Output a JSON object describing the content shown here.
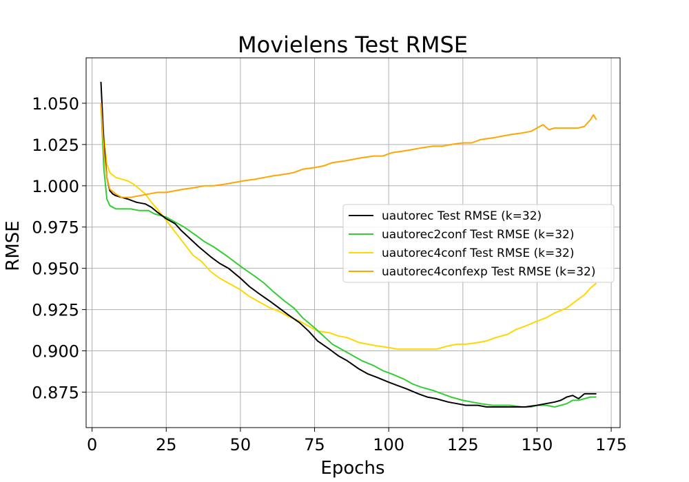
{
  "chart_data": {
    "type": "line",
    "title": "Movielens Test RMSE",
    "xlabel": "Epochs",
    "ylabel": "RMSE",
    "xlim": [
      -2,
      178
    ],
    "ylim": [
      0.8535,
      1.0775
    ],
    "xticks": [
      0,
      25,
      50,
      75,
      100,
      125,
      150,
      175
    ],
    "xtick_labels": [
      "0",
      "25",
      "50",
      "75",
      "100",
      "125",
      "150",
      "175"
    ],
    "yticks": [
      0.875,
      0.9,
      0.925,
      0.95,
      0.975,
      1.0,
      1.025,
      1.05
    ],
    "ytick_labels": [
      "0.875",
      "0.900",
      "0.925",
      "0.950",
      "0.975",
      "1.000",
      "1.025",
      "1.050"
    ],
    "grid": true,
    "legend_position": "center-right",
    "series": [
      {
        "name": "uautorec Test RMSE (k=32)",
        "color": "#000000",
        "points": [
          [
            3,
            1.063
          ],
          [
            4,
            1.025
          ],
          [
            5,
            1.005
          ],
          [
            6,
            0.997
          ],
          [
            7,
            0.995
          ],
          [
            8,
            0.994
          ],
          [
            10,
            0.993
          ],
          [
            12,
            0.992
          ],
          [
            15,
            0.99
          ],
          [
            18,
            0.989
          ],
          [
            20,
            0.987
          ],
          [
            22,
            0.984
          ],
          [
            25,
            0.98
          ],
          [
            28,
            0.977
          ],
          [
            30,
            0.973
          ],
          [
            33,
            0.968
          ],
          [
            36,
            0.963
          ],
          [
            40,
            0.957
          ],
          [
            43,
            0.953
          ],
          [
            46,
            0.95
          ],
          [
            50,
            0.944
          ],
          [
            53,
            0.939
          ],
          [
            56,
            0.935
          ],
          [
            60,
            0.93
          ],
          [
            63,
            0.926
          ],
          [
            66,
            0.922
          ],
          [
            70,
            0.917
          ],
          [
            73,
            0.912
          ],
          [
            76,
            0.906
          ],
          [
            80,
            0.901
          ],
          [
            83,
            0.897
          ],
          [
            86,
            0.894
          ],
          [
            90,
            0.889
          ],
          [
            93,
            0.886
          ],
          [
            96,
            0.884
          ],
          [
            100,
            0.881
          ],
          [
            103,
            0.879
          ],
          [
            106,
            0.877
          ],
          [
            110,
            0.874
          ],
          [
            113,
            0.872
          ],
          [
            116,
            0.871
          ],
          [
            120,
            0.869
          ],
          [
            123,
            0.868
          ],
          [
            126,
            0.867
          ],
          [
            130,
            0.867
          ],
          [
            133,
            0.866
          ],
          [
            136,
            0.866
          ],
          [
            140,
            0.866
          ],
          [
            143,
            0.866
          ],
          [
            146,
            0.866
          ],
          [
            150,
            0.867
          ],
          [
            153,
            0.868
          ],
          [
            156,
            0.869
          ],
          [
            158,
            0.87
          ],
          [
            160,
            0.872
          ],
          [
            162,
            0.873
          ],
          [
            164,
            0.871
          ],
          [
            166,
            0.874
          ],
          [
            168,
            0.874
          ],
          [
            170,
            0.874
          ]
        ]
      },
      {
        "name": "uautorec2conf Test RMSE (k=32)",
        "color": "#32cd32",
        "points": [
          [
            3,
            1.05
          ],
          [
            4,
            1.01
          ],
          [
            5,
            0.992
          ],
          [
            6,
            0.988
          ],
          [
            8,
            0.986
          ],
          [
            10,
            0.986
          ],
          [
            13,
            0.986
          ],
          [
            16,
            0.985
          ],
          [
            19,
            0.985
          ],
          [
            21,
            0.983
          ],
          [
            23,
            0.982
          ],
          [
            25,
            0.981
          ],
          [
            28,
            0.978
          ],
          [
            31,
            0.975
          ],
          [
            35,
            0.97
          ],
          [
            38,
            0.966
          ],
          [
            41,
            0.963
          ],
          [
            45,
            0.958
          ],
          [
            48,
            0.954
          ],
          [
            51,
            0.95
          ],
          [
            55,
            0.945
          ],
          [
            58,
            0.941
          ],
          [
            61,
            0.936
          ],
          [
            65,
            0.93
          ],
          [
            68,
            0.926
          ],
          [
            71,
            0.92
          ],
          [
            75,
            0.914
          ],
          [
            78,
            0.909
          ],
          [
            81,
            0.904
          ],
          [
            85,
            0.9
          ],
          [
            88,
            0.897
          ],
          [
            91,
            0.894
          ],
          [
            95,
            0.891
          ],
          [
            98,
            0.888
          ],
          [
            101,
            0.886
          ],
          [
            105,
            0.883
          ],
          [
            108,
            0.88
          ],
          [
            111,
            0.878
          ],
          [
            115,
            0.876
          ],
          [
            118,
            0.874
          ],
          [
            121,
            0.872
          ],
          [
            125,
            0.87
          ],
          [
            128,
            0.869
          ],
          [
            131,
            0.868
          ],
          [
            135,
            0.867
          ],
          [
            138,
            0.867
          ],
          [
            141,
            0.867
          ],
          [
            145,
            0.866
          ],
          [
            148,
            0.866
          ],
          [
            150,
            0.867
          ],
          [
            153,
            0.867
          ],
          [
            156,
            0.866
          ],
          [
            158,
            0.867
          ],
          [
            160,
            0.868
          ],
          [
            162,
            0.87
          ],
          [
            164,
            0.87
          ],
          [
            166,
            0.871
          ],
          [
            168,
            0.872
          ],
          [
            170,
            0.872
          ]
        ]
      },
      {
        "name": "uautorec4conf Test RMSE (k=32)",
        "color": "#ffd700",
        "points": [
          [
            3,
            1.047
          ],
          [
            4,
            1.03
          ],
          [
            5,
            1.013
          ],
          [
            6,
            1.008
          ],
          [
            8,
            1.005
          ],
          [
            10,
            1.004
          ],
          [
            12,
            1.003
          ],
          [
            14,
            1.001
          ],
          [
            16,
            0.998
          ],
          [
            18,
            0.995
          ],
          [
            20,
            0.99
          ],
          [
            22,
            0.986
          ],
          [
            25,
            0.979
          ],
          [
            28,
            0.972
          ],
          [
            31,
            0.965
          ],
          [
            34,
            0.958
          ],
          [
            37,
            0.954
          ],
          [
            40,
            0.948
          ],
          [
            43,
            0.944
          ],
          [
            46,
            0.941
          ],
          [
            50,
            0.937
          ],
          [
            53,
            0.933
          ],
          [
            56,
            0.93
          ],
          [
            60,
            0.926
          ],
          [
            63,
            0.924
          ],
          [
            66,
            0.921
          ],
          [
            70,
            0.918
          ],
          [
            73,
            0.915
          ],
          [
            76,
            0.912
          ],
          [
            80,
            0.911
          ],
          [
            83,
            0.909
          ],
          [
            86,
            0.908
          ],
          [
            90,
            0.905
          ],
          [
            93,
            0.904
          ],
          [
            96,
            0.903
          ],
          [
            100,
            0.902
          ],
          [
            103,
            0.901
          ],
          [
            106,
            0.901
          ],
          [
            110,
            0.901
          ],
          [
            113,
            0.901
          ],
          [
            116,
            0.901
          ],
          [
            120,
            0.903
          ],
          [
            123,
            0.904
          ],
          [
            126,
            0.904
          ],
          [
            130,
            0.905
          ],
          [
            133,
            0.906
          ],
          [
            136,
            0.908
          ],
          [
            140,
            0.91
          ],
          [
            143,
            0.913
          ],
          [
            146,
            0.915
          ],
          [
            150,
            0.918
          ],
          [
            153,
            0.92
          ],
          [
            156,
            0.923
          ],
          [
            160,
            0.926
          ],
          [
            163,
            0.93
          ],
          [
            166,
            0.934
          ],
          [
            168,
            0.938
          ],
          [
            170,
            0.941
          ]
        ]
      },
      {
        "name": "uautorec4confexp Test RMSE (k=32)",
        "color": "#ffa500",
        "points": [
          [
            3,
            1.05
          ],
          [
            4,
            1.02
          ],
          [
            5,
            1.005
          ],
          [
            6,
            0.998
          ],
          [
            8,
            0.995
          ],
          [
            10,
            0.993
          ],
          [
            13,
            0.993
          ],
          [
            16,
            0.994
          ],
          [
            19,
            0.995
          ],
          [
            22,
            0.996
          ],
          [
            25,
            0.996
          ],
          [
            28,
            0.997
          ],
          [
            31,
            0.998
          ],
          [
            35,
            0.999
          ],
          [
            38,
            1.0
          ],
          [
            41,
            1.0
          ],
          [
            45,
            1.001
          ],
          [
            48,
            1.002
          ],
          [
            51,
            1.003
          ],
          [
            55,
            1.004
          ],
          [
            58,
            1.005
          ],
          [
            61,
            1.006
          ],
          [
            65,
            1.007
          ],
          [
            68,
            1.008
          ],
          [
            71,
            1.01
          ],
          [
            75,
            1.011
          ],
          [
            78,
            1.012
          ],
          [
            81,
            1.014
          ],
          [
            85,
            1.015
          ],
          [
            88,
            1.016
          ],
          [
            91,
            1.017
          ],
          [
            95,
            1.018
          ],
          [
            98,
            1.018
          ],
          [
            101,
            1.02
          ],
          [
            105,
            1.021
          ],
          [
            108,
            1.022
          ],
          [
            111,
            1.023
          ],
          [
            115,
            1.024
          ],
          [
            118,
            1.024
          ],
          [
            121,
            1.025
          ],
          [
            125,
            1.026
          ],
          [
            128,
            1.026
          ],
          [
            131,
            1.028
          ],
          [
            135,
            1.029
          ],
          [
            138,
            1.03
          ],
          [
            141,
            1.031
          ],
          [
            145,
            1.032
          ],
          [
            148,
            1.033
          ],
          [
            150,
            1.035
          ],
          [
            152,
            1.037
          ],
          [
            154,
            1.034
          ],
          [
            156,
            1.035
          ],
          [
            159,
            1.035
          ],
          [
            162,
            1.035
          ],
          [
            164,
            1.035
          ],
          [
            166,
            1.036
          ],
          [
            168,
            1.04
          ],
          [
            169,
            1.043
          ],
          [
            170,
            1.04
          ]
        ]
      }
    ]
  }
}
